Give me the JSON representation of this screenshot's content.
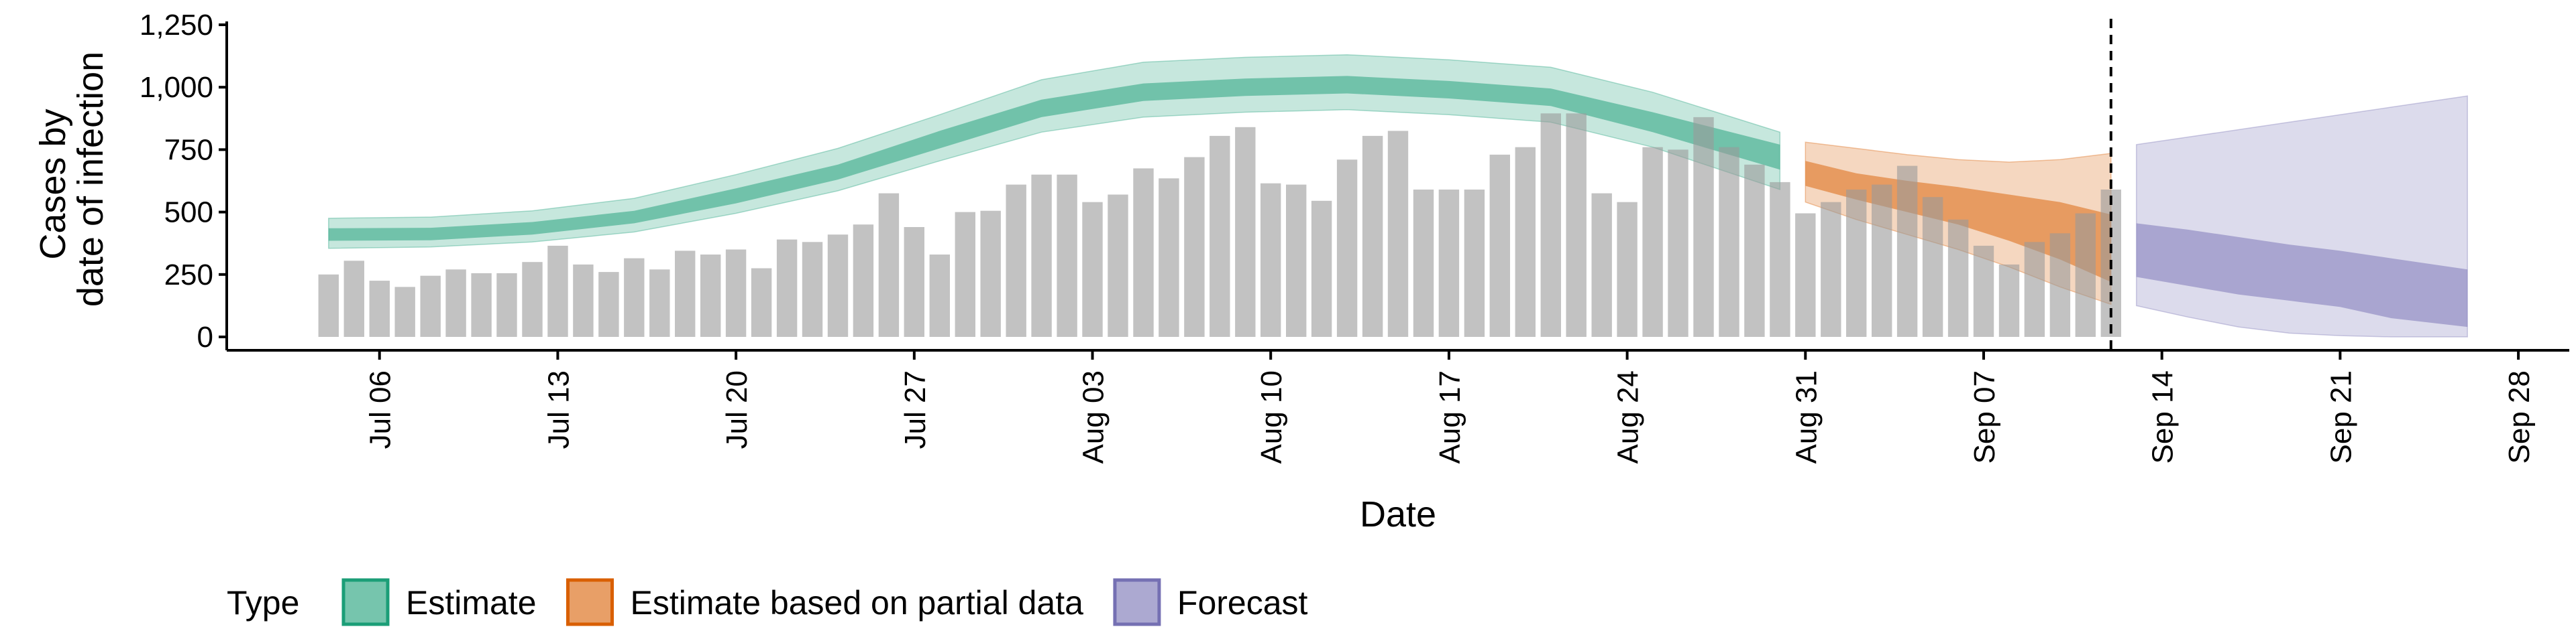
{
  "chart_data": {
    "type": "bar",
    "title": "",
    "xlabel": "Date",
    "ylabel_lines": [
      "Cases by",
      "date of infection"
    ],
    "ylim": [
      0,
      1250
    ],
    "y_ticks": [
      0,
      250,
      500,
      750,
      1000,
      1250
    ],
    "y_tick_labels": [
      "0",
      "250",
      "500",
      "750",
      "1,000",
      "1,250"
    ],
    "xlim": [
      "2020-06-30",
      "2020-09-30"
    ],
    "x_ticks": [
      "2020-07-06",
      "2020-07-13",
      "2020-07-20",
      "2020-07-27",
      "2020-08-03",
      "2020-08-10",
      "2020-08-17",
      "2020-08-24",
      "2020-08-31",
      "2020-09-07",
      "2020-09-14",
      "2020-09-21",
      "2020-09-28"
    ],
    "x_tick_labels": [
      "Jul 06",
      "Jul 13",
      "Jul 20",
      "Jul 27",
      "Aug 03",
      "Aug 10",
      "Aug 17",
      "Aug 24",
      "Aug 31",
      "Sep 07",
      "Sep 14",
      "Sep 21",
      "Sep 28"
    ],
    "bars": {
      "dates": [
        "2020-07-04",
        "2020-07-05",
        "2020-07-06",
        "2020-07-07",
        "2020-07-08",
        "2020-07-09",
        "2020-07-10",
        "2020-07-11",
        "2020-07-12",
        "2020-07-13",
        "2020-07-14",
        "2020-07-15",
        "2020-07-16",
        "2020-07-17",
        "2020-07-18",
        "2020-07-19",
        "2020-07-20",
        "2020-07-21",
        "2020-07-22",
        "2020-07-23",
        "2020-07-24",
        "2020-07-25",
        "2020-07-26",
        "2020-07-27",
        "2020-07-28",
        "2020-07-29",
        "2020-07-30",
        "2020-07-31",
        "2020-08-01",
        "2020-08-02",
        "2020-08-03",
        "2020-08-04",
        "2020-08-05",
        "2020-08-06",
        "2020-08-07",
        "2020-08-08",
        "2020-08-09",
        "2020-08-10",
        "2020-08-11",
        "2020-08-12",
        "2020-08-13",
        "2020-08-14",
        "2020-08-15",
        "2020-08-16",
        "2020-08-17",
        "2020-08-18",
        "2020-08-19",
        "2020-08-20",
        "2020-08-21",
        "2020-08-22",
        "2020-08-23",
        "2020-08-24",
        "2020-08-25",
        "2020-08-26",
        "2020-08-27",
        "2020-08-28",
        "2020-08-29",
        "2020-08-30",
        "2020-08-31",
        "2020-09-01",
        "2020-09-02",
        "2020-09-03",
        "2020-09-04",
        "2020-09-05",
        "2020-09-06",
        "2020-09-07",
        "2020-09-08",
        "2020-09-09",
        "2020-09-10",
        "2020-09-11",
        "2020-09-12"
      ],
      "values": [
        250,
        305,
        225,
        200,
        245,
        270,
        255,
        255,
        300,
        365,
        290,
        260,
        315,
        270,
        345,
        330,
        350,
        275,
        390,
        380,
        410,
        450,
        575,
        440,
        330,
        500,
        505,
        610,
        650,
        650,
        540,
        570,
        675,
        635,
        720,
        805,
        840,
        615,
        610,
        545,
        710,
        805,
        825,
        590,
        590,
        590,
        730,
        760,
        895,
        895,
        575,
        540,
        760,
        750,
        880,
        760,
        690,
        620,
        495,
        540,
        590,
        610,
        685,
        560,
        470,
        365,
        290,
        380,
        415,
        495,
        590
      ]
    },
    "series": [
      {
        "name": "Estimate",
        "color": "#1b9e77",
        "dates": [
          "2020-07-04",
          "2020-07-08",
          "2020-07-12",
          "2020-07-16",
          "2020-07-20",
          "2020-07-24",
          "2020-07-28",
          "2020-08-01",
          "2020-08-05",
          "2020-08-09",
          "2020-08-13",
          "2020-08-17",
          "2020-08-21",
          "2020-08-25",
          "2020-08-30"
        ],
        "median": [
          410,
          412,
          435,
          480,
          565,
          660,
          790,
          915,
          980,
          1000,
          1010,
          990,
          960,
          860,
          720
        ],
        "inner_lower": [
          385,
          387,
          410,
          455,
          535,
          630,
          755,
          880,
          945,
          965,
          975,
          955,
          925,
          820,
          670
        ],
        "inner_upper": [
          435,
          437,
          460,
          505,
          595,
          690,
          825,
          950,
          1015,
          1035,
          1045,
          1025,
          995,
          900,
          770
        ],
        "outer_lower": [
          355,
          360,
          380,
          420,
          495,
          585,
          705,
          820,
          880,
          900,
          910,
          890,
          860,
          760,
          590
        ],
        "outer_upper": [
          475,
          480,
          505,
          555,
          650,
          755,
          890,
          1030,
          1100,
          1120,
          1130,
          1110,
          1080,
          980,
          820
        ]
      },
      {
        "name": "Estimate based on partial data",
        "color": "#d95f02",
        "dates": [
          "2020-08-31",
          "2020-09-02",
          "2020-09-04",
          "2020-09-06",
          "2020-09-08",
          "2020-09-10",
          "2020-09-12"
        ],
        "median": [
          650,
          600,
          560,
          520,
          470,
          420,
          350
        ],
        "inner_lower": [
          605,
          550,
          500,
          450,
          385,
          310,
          220
        ],
        "inner_upper": [
          705,
          655,
          625,
          600,
          570,
          540,
          490
        ],
        "outer_lower": [
          540,
          470,
          410,
          350,
          280,
          200,
          130
        ],
        "outer_upper": [
          780,
          755,
          730,
          710,
          700,
          710,
          735
        ]
      },
      {
        "name": "Forecast",
        "color": "#7570b3",
        "dates": [
          "2020-09-13",
          "2020-09-15",
          "2020-09-17",
          "2020-09-19",
          "2020-09-21",
          "2020-09-23",
          "2020-09-26"
        ],
        "median": [
          345,
          310,
          280,
          250,
          225,
          185,
          150
        ],
        "inner_lower": [
          240,
          205,
          170,
          145,
          120,
          75,
          40
        ],
        "inner_upper": [
          455,
          430,
          400,
          370,
          345,
          315,
          270
        ],
        "outer_lower": [
          125,
          80,
          40,
          15,
          5,
          0,
          0
        ],
        "outer_upper": [
          770,
          800,
          830,
          860,
          890,
          920,
          965
        ]
      }
    ],
    "vline_date": "2020-09-12",
    "legend": {
      "title": "Type",
      "position": "bottom",
      "items": [
        "Estimate",
        "Estimate based on partial data",
        "Forecast"
      ]
    },
    "grid": false
  }
}
